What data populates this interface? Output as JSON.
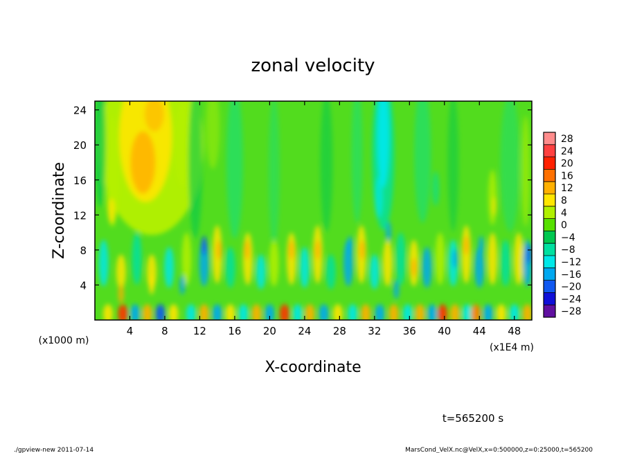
{
  "chart_data": {
    "type": "heatmap",
    "title": "zonal velocity",
    "xlabel": "X-coordinate",
    "ylabel": "Z-coordinate",
    "x_unit_label": "(x1E4 m)",
    "y_unit_label": "(x1000 m)",
    "xlim": [
      0,
      50
    ],
    "ylim": [
      0,
      25
    ],
    "xticks": [
      4,
      8,
      12,
      16,
      20,
      24,
      28,
      32,
      36,
      40,
      44,
      48
    ],
    "yticks": [
      4,
      8,
      12,
      16,
      20,
      24
    ],
    "colorbar": {
      "levels": [
        28,
        24,
        20,
        16,
        12,
        8,
        4,
        0,
        -4,
        -8,
        -12,
        -16,
        -20,
        -24,
        -28
      ],
      "labels": [
        "28",
        "24",
        "20",
        "16",
        "12",
        "8",
        "4",
        "0",
        "−4",
        "−8",
        "−12",
        "−16",
        "−20",
        "−24",
        "−28"
      ],
      "colors": [
        "#ff8c8c",
        "#ff4040",
        "#ff2000",
        "#ff7000",
        "#ffb000",
        "#ffe600",
        "#b0f000",
        "#56e000",
        "#00c850",
        "#00e0a0",
        "#00e8e8",
        "#00a8f0",
        "#1058f0",
        "#1010d8",
        "#6010a0"
      ]
    },
    "approx_features": [
      {
        "x": 6,
        "z": 18,
        "value": 14,
        "desc": "upper-left warm maximum"
      },
      {
        "x": 33,
        "z": 20,
        "value": -10,
        "desc": "upper cyan column"
      },
      {
        "x": 22,
        "z": 0.5,
        "value": 18,
        "desc": "near-surface maximum"
      },
      {
        "x": 40,
        "z": 1,
        "value": 16,
        "desc": "near-surface maximum"
      },
      {
        "x": 5,
        "z": 2,
        "value": -14,
        "desc": "near-surface minimum"
      }
    ],
    "time_label": "t=565200 s"
  },
  "footer": {
    "left": "./gpview-new   2011-07-14",
    "right": "MarsCond_VelX.nc@VelX,x=0:500000,z=0:25000,t=565200"
  }
}
